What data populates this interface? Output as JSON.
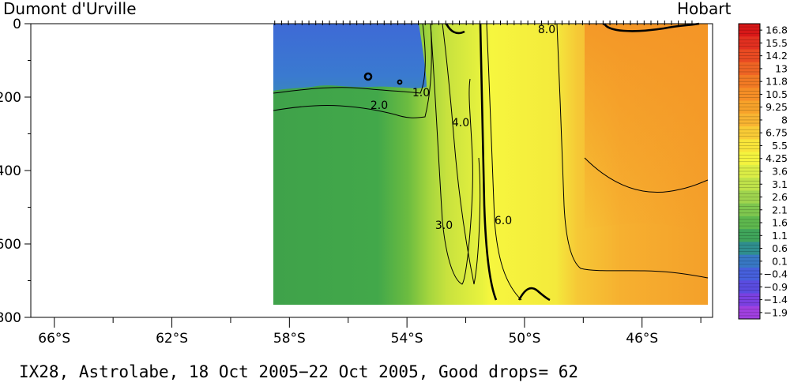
{
  "chart_data": {
    "type": "heatmap",
    "variable": "temperature",
    "left_label": "Dumont d'Urville",
    "right_label": "Hobart",
    "title": "IX28, Astrolabe, 18 Oct 2005−22 Oct 2005, Good drops= 62",
    "x_ticks": [
      "66°S",
      "62°S",
      "58°S",
      "54°S",
      "50°S",
      "46°S"
    ],
    "x_tick_values": [
      -66,
      -62,
      -58,
      -54,
      -50,
      -46
    ],
    "xlim": [
      -66.8,
      -43.6
    ],
    "y_ticks": [
      "0",
      "200",
      "400",
      "600",
      "800"
    ],
    "y_tick_values": [
      0,
      200,
      400,
      600,
      800
    ],
    "ylim": [
      0,
      800
    ],
    "y_inverted": true,
    "data_extent": {
      "lat_from": -58.5,
      "lat_to": -44.3,
      "depth_max": 765
    },
    "colorbar": {
      "labels": [
        "16.8",
        "15.5",
        "14.2",
        "13",
        "11.8",
        "10.5",
        "9.25",
        "8",
        "6.75",
        "5.5",
        "4.25",
        "3.6",
        "3.1",
        "2.6",
        "2.1",
        "1.6",
        "1.1",
        "0.6",
        "0.1",
        "−0.4",
        "−0.9",
        "−1.4",
        "−1.9"
      ],
      "colors": [
        "#d81818",
        "#e23020",
        "#e84a22",
        "#ee6424",
        "#f27a24",
        "#f58e26",
        "#f7a22a",
        "#f8b432",
        "#f9cc36",
        "#f8e43a",
        "#f4f33e",
        "#dcee46",
        "#bfe24a",
        "#9fd44e",
        "#7ec64e",
        "#5eb84e",
        "#3fa45a",
        "#2f8e8e",
        "#3878c4",
        "#4660dc",
        "#5a4ce0",
        "#7a40e0",
        "#a040e0"
      ]
    },
    "contours": [
      {
        "level": 1.0,
        "label": "1.0"
      },
      {
        "level": 2.0,
        "label": "2.0"
      },
      {
        "level": 3.0,
        "label": "3.0"
      },
      {
        "level": 4.0,
        "label": "4.0"
      },
      {
        "level": 6.0,
        "label": "6.0"
      },
      {
        "level": 8.0,
        "label": "8.0"
      }
    ]
  }
}
